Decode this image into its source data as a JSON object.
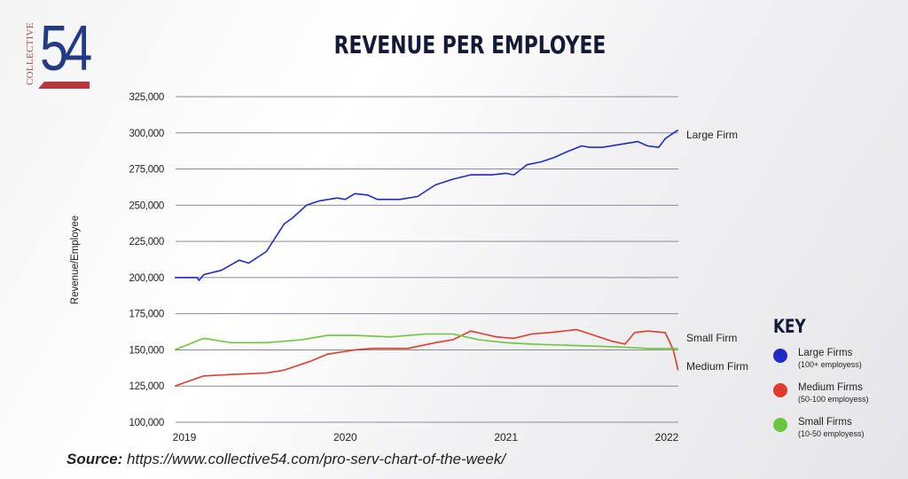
{
  "logo": {
    "text_vertical": "COLLECTIVE",
    "number": "54"
  },
  "source": {
    "label": "Source:",
    "url": "https://www.collective54.com/pro-serv-chart-of-the-week/"
  },
  "colors": {
    "large": "#1f2bc4",
    "medium": "#e03a2a",
    "small": "#6cc63c",
    "grid": "#8a8a95"
  },
  "key": {
    "title": "KEY",
    "items": [
      {
        "label": "Large Firms",
        "sub": "(100+ employess)",
        "color": "#1f2bc4"
      },
      {
        "label": "Medium Firms",
        "sub": "(50-100 employess)",
        "color": "#e03a2a"
      },
      {
        "label": "Small Firms",
        "sub": "(10-50 employess)",
        "color": "#6cc63c"
      }
    ]
  },
  "chart_data": {
    "type": "line",
    "title": "REVENUE PER EMPLOYEE",
    "xlabel": "",
    "ylabel": "Revenue/Employee",
    "xlim": [
      2018.94,
      2022.07
    ],
    "ylim": [
      100000,
      325000
    ],
    "xticks": [
      {
        "v": 2019,
        "label": "2019"
      },
      {
        "v": 2020,
        "label": "2020"
      },
      {
        "v": 2021,
        "label": "2021"
      },
      {
        "v": 2022,
        "label": "2022"
      }
    ],
    "yticks": [
      {
        "v": 100000,
        "label": "100,000"
      },
      {
        "v": 125000,
        "label": "125,000"
      },
      {
        "v": 150000,
        "label": "150,000"
      },
      {
        "v": 175000,
        "label": "175,000"
      },
      {
        "v": 200000,
        "label": "200,000"
      },
      {
        "v": 225000,
        "label": "225,000"
      },
      {
        "v": 250000,
        "label": "250,000"
      },
      {
        "v": 275000,
        "label": "275,000"
      },
      {
        "v": 300000,
        "label": "300,000"
      },
      {
        "v": 325000,
        "label": "325,000"
      }
    ],
    "grid": true,
    "series": [
      {
        "name": "Large Firm",
        "color": "#1f2bc4",
        "x": [
          2018.94,
          2019.08,
          2019.09,
          2019.12,
          2019.23,
          2019.34,
          2019.4,
          2019.51,
          2019.62,
          2019.67,
          2019.76,
          2019.84,
          2019.95,
          2020.0,
          2020.06,
          2020.14,
          2020.2,
          2020.34,
          2020.45,
          2020.56,
          2020.67,
          2020.78,
          2020.91,
          2021.0,
          2021.05,
          2021.13,
          2021.22,
          2021.3,
          2021.38,
          2021.47,
          2021.52,
          2021.6,
          2021.71,
          2021.82,
          2021.88,
          2021.95,
          2021.99,
          2022.07
        ],
        "y": [
          200000,
          200000,
          198000,
          202000,
          205000,
          212000,
          210000,
          218000,
          237000,
          241000,
          250000,
          253000,
          255000,
          254000,
          258000,
          257000,
          254000,
          254000,
          256000,
          264000,
          268000,
          271000,
          271000,
          272000,
          271000,
          278000,
          280000,
          283000,
          287000,
          291000,
          290000,
          290000,
          292000,
          294000,
          291000,
          290000,
          296000,
          302000
        ]
      },
      {
        "name": "Medium Firm",
        "color": "#e03a2a",
        "x": [
          2018.94,
          2019.12,
          2019.29,
          2019.51,
          2019.62,
          2019.78,
          2019.89,
          2020.06,
          2020.17,
          2020.39,
          2020.56,
          2020.67,
          2020.78,
          2020.86,
          2020.94,
          2021.05,
          2021.16,
          2021.27,
          2021.44,
          2021.55,
          2021.66,
          2021.74,
          2021.8,
          2021.88,
          2021.99,
          2022.04,
          2022.07
        ],
        "y": [
          125000,
          132000,
          133000,
          134000,
          136000,
          142000,
          147000,
          150000,
          151000,
          151000,
          155000,
          157000,
          163000,
          161000,
          159000,
          158000,
          161000,
          162000,
          164000,
          160000,
          156000,
          154000,
          162000,
          163000,
          162000,
          150000,
          136000
        ]
      },
      {
        "name": "Small Firm",
        "color": "#6cc63c",
        "x": [
          2018.94,
          2019.12,
          2019.29,
          2019.51,
          2019.73,
          2019.89,
          2020.06,
          2020.28,
          2020.5,
          2020.67,
          2020.83,
          2021.0,
          2021.16,
          2021.44,
          2021.71,
          2021.88,
          2022.07
        ],
        "y": [
          150000,
          158000,
          155000,
          155000,
          157000,
          160000,
          160000,
          159000,
          161000,
          161000,
          157000,
          155000,
          154000,
          153000,
          152000,
          151000,
          151000
        ]
      }
    ]
  }
}
